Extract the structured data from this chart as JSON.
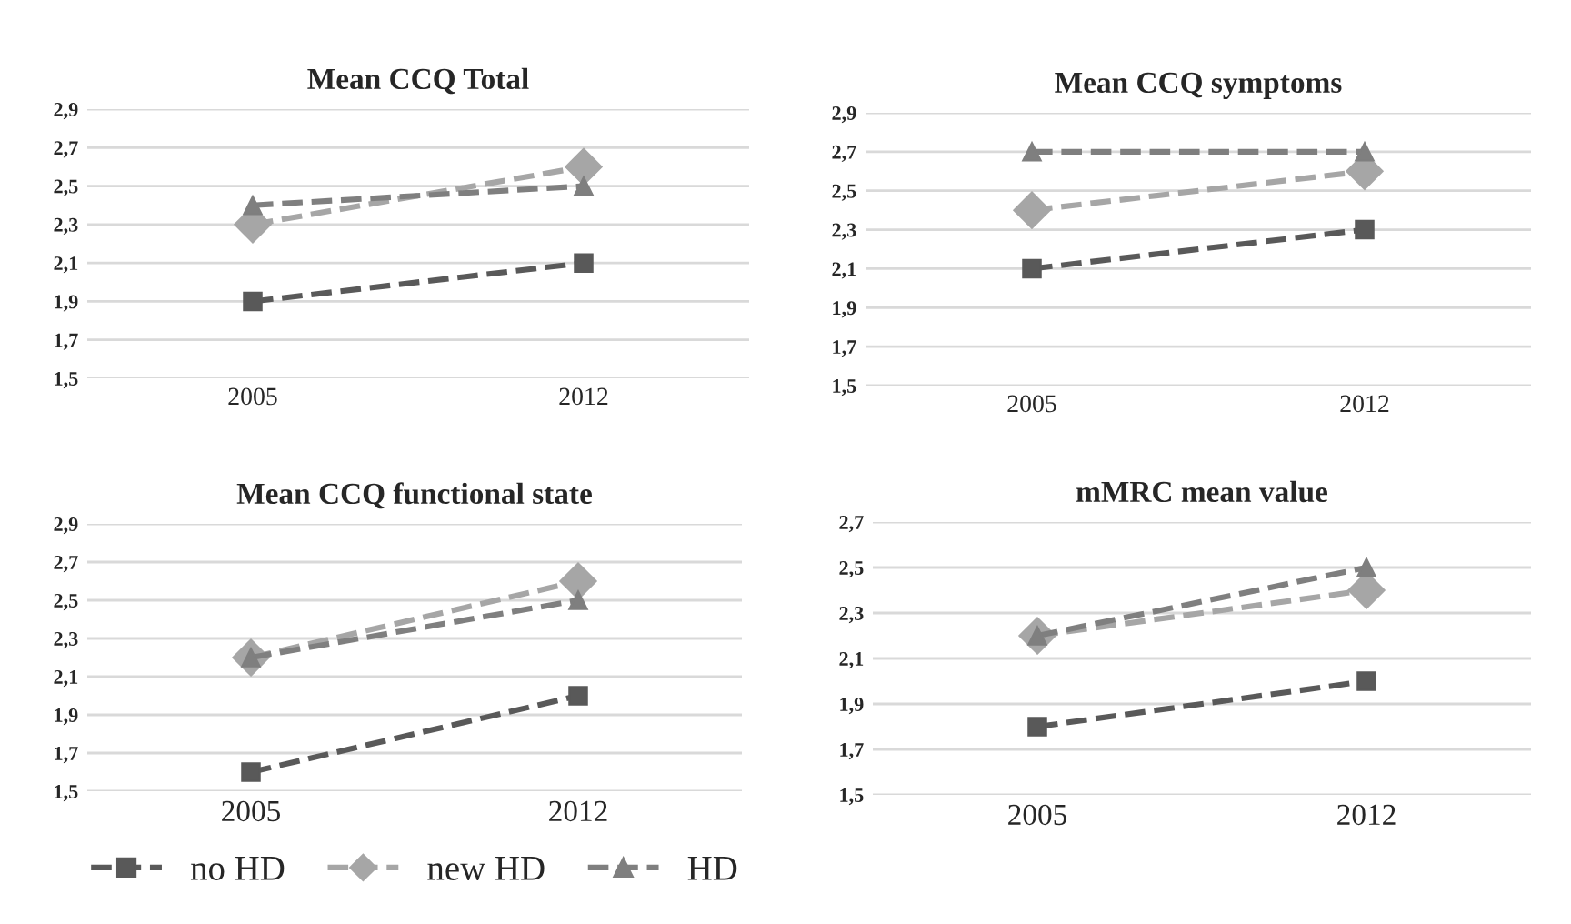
{
  "chart_data": [
    {
      "type": "line",
      "title": "Mean CCQ Total",
      "categories": [
        "2005",
        "2012"
      ],
      "ylim": [
        1.5,
        2.9
      ],
      "yticks": [
        {
          "value": 1.5,
          "label": "1,5"
        },
        {
          "value": 1.7,
          "label": "1,7"
        },
        {
          "value": 1.9,
          "label": "1,9"
        },
        {
          "value": 2.1,
          "label": "2,1"
        },
        {
          "value": 2.3,
          "label": "2,3"
        },
        {
          "value": 2.5,
          "label": "2,5"
        },
        {
          "value": 2.7,
          "label": "2,7"
        },
        {
          "value": 2.9,
          "label": "2,9"
        }
      ],
      "grid": "y",
      "line_style": "dashed",
      "series": [
        {
          "color": "#595959",
          "marker": "square",
          "values": [
            1.9,
            2.1
          ]
        },
        {
          "color": "#a6a6a6",
          "marker": "diamond",
          "values": [
            2.3,
            2.6
          ]
        },
        {
          "color": "#7f7f7f",
          "marker": "triangle",
          "values": [
            2.4,
            2.5
          ]
        }
      ]
    },
    {
      "type": "line",
      "title": "Mean CCQ symptoms",
      "categories": [
        "2005",
        "2012"
      ],
      "ylim": [
        1.5,
        2.9
      ],
      "yticks": [
        {
          "value": 1.5,
          "label": "1,5"
        },
        {
          "value": 1.7,
          "label": "1,7"
        },
        {
          "value": 1.9,
          "label": "1,9"
        },
        {
          "value": 2.1,
          "label": "2,1"
        },
        {
          "value": 2.3,
          "label": "2,3"
        },
        {
          "value": 2.5,
          "label": "2,5"
        },
        {
          "value": 2.7,
          "label": "2,7"
        },
        {
          "value": 2.9,
          "label": "2,9"
        }
      ],
      "grid": "y",
      "line_style": "dashed",
      "series": [
        {
          "color": "#595959",
          "marker": "square",
          "values": [
            2.1,
            2.3
          ]
        },
        {
          "color": "#a6a6a6",
          "marker": "diamond",
          "values": [
            2.4,
            2.6
          ]
        },
        {
          "color": "#7f7f7f",
          "marker": "triangle",
          "values": [
            2.7,
            2.7
          ]
        }
      ]
    },
    {
      "type": "line",
      "title": "Mean CCQ functional state",
      "categories": [
        "2005",
        "2012"
      ],
      "ylim": [
        1.5,
        2.9
      ],
      "yticks": [
        {
          "value": 1.5,
          "label": "1,5"
        },
        {
          "value": 1.7,
          "label": "1,7"
        },
        {
          "value": 1.9,
          "label": "1,9"
        },
        {
          "value": 2.1,
          "label": "2,1"
        },
        {
          "value": 2.3,
          "label": "2,3"
        },
        {
          "value": 2.5,
          "label": "2,5"
        },
        {
          "value": 2.7,
          "label": "2,7"
        },
        {
          "value": 2.9,
          "label": "2,9"
        }
      ],
      "grid": "y",
      "line_style": "dashed",
      "legend": "bottom",
      "series": [
        {
          "name": "no HD",
          "color": "#595959",
          "marker": "square",
          "values": [
            1.6,
            2.0
          ]
        },
        {
          "name": "new HD",
          "color": "#a6a6a6",
          "marker": "diamond",
          "values": [
            2.2,
            2.6
          ]
        },
        {
          "name": "HD",
          "color": "#7f7f7f",
          "marker": "triangle",
          "values": [
            2.2,
            2.5
          ]
        }
      ]
    },
    {
      "type": "line",
      "title": "mMRC mean value",
      "categories": [
        "2005",
        "2012"
      ],
      "ylim": [
        1.5,
        2.7
      ],
      "yticks": [
        {
          "value": 1.5,
          "label": "1,5"
        },
        {
          "value": 1.7,
          "label": "1,7"
        },
        {
          "value": 1.9,
          "label": "1,9"
        },
        {
          "value": 2.1,
          "label": "2,1"
        },
        {
          "value": 2.3,
          "label": "2,3"
        },
        {
          "value": 2.5,
          "label": "2,5"
        },
        {
          "value": 2.7,
          "label": "2,7"
        }
      ],
      "grid": "y",
      "line_style": "dashed",
      "series": [
        {
          "color": "#595959",
          "marker": "square",
          "values": [
            1.8,
            2.0
          ]
        },
        {
          "color": "#a6a6a6",
          "marker": "diamond",
          "values": [
            2.2,
            2.4
          ]
        },
        {
          "color": "#7f7f7f",
          "marker": "triangle",
          "values": [
            2.2,
            2.5
          ]
        }
      ]
    }
  ]
}
